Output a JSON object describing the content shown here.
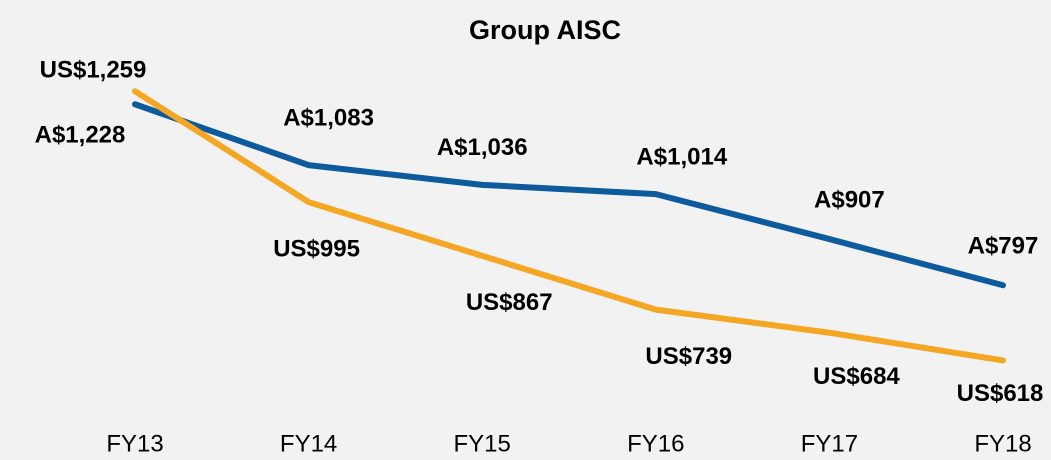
{
  "chart_data": {
    "type": "line",
    "title": "Group AISC",
    "categories": [
      "FY13",
      "FY14",
      "FY15",
      "FY16",
      "FY17",
      "FY18"
    ],
    "series": [
      {
        "name": "A$",
        "color": "#0d5a9c",
        "values": [
          1228,
          1083,
          1036,
          1014,
          907,
          797
        ],
        "value_labels": [
          "A$1,228",
          "A$1,083",
          "A$1,036",
          "A$1,014",
          "A$907",
          "A$797"
        ]
      },
      {
        "name": "US$",
        "color": "#f5a623",
        "values": [
          1259,
          995,
          867,
          739,
          684,
          618
        ],
        "value_labels": [
          "US$1,259",
          "US$995",
          "US$867",
          "US$739",
          "US$684",
          "US$618"
        ]
      }
    ]
  }
}
